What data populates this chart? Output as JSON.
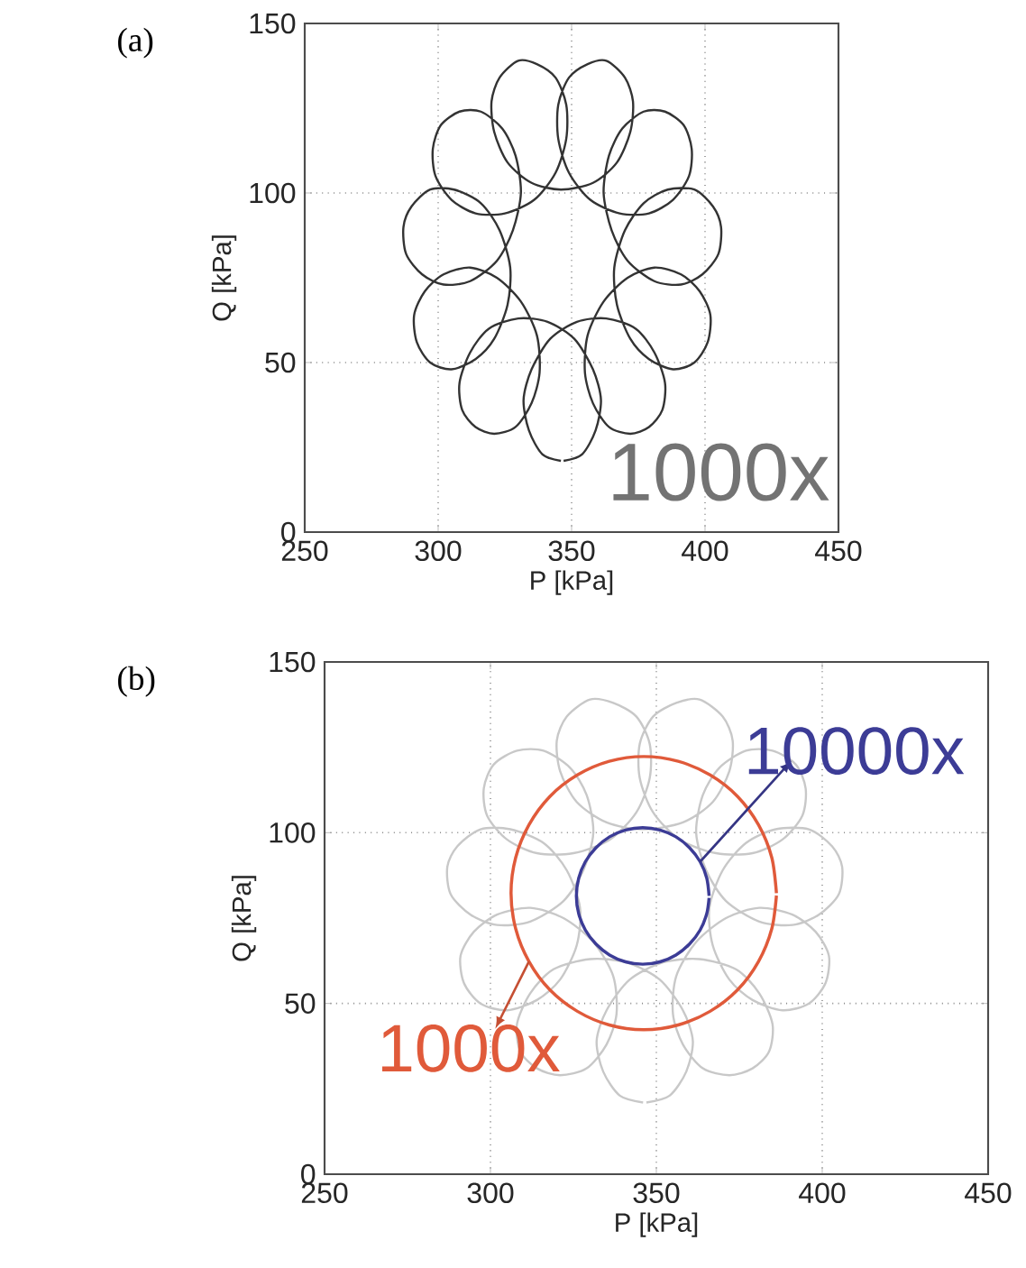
{
  "chart_data": [
    {
      "type": "line",
      "title": "(a)",
      "xlabel": "P [kPa]",
      "ylabel": "Q [kPa]",
      "xlim": [
        250,
        450
      ],
      "ylim": [
        0,
        150
      ],
      "xticks": [
        250,
        300,
        350,
        400,
        450
      ],
      "yticks": [
        0,
        50,
        100,
        150
      ],
      "grid": true,
      "annotations": [
        "1000x"
      ],
      "series": [
        {
          "color": "#333333",
          "x": [
            346,
            339,
            334,
            332,
            335,
            342,
            352,
            363,
            374,
            381,
            385,
            384,
            379,
            372,
            364,
            358,
            355,
            356,
            362,
            371,
            381,
            391,
            398,
            402,
            401,
            396,
            388,
            379,
            372,
            367,
            366,
            370,
            377,
            386,
            396,
            403,
            406,
            405,
            399,
            391,
            381,
            371,
            365,
            362,
            364,
            369,
            377,
            385,
            392,
            395,
            394,
            388,
            379,
            368,
            357,
            349,
            345,
            345,
            349,
            356,
            363,
            370,
            373,
            372,
            367,
            358,
            346,
            335,
            326,
            321,
            320,
            323,
            330,
            337,
            344,
            348,
            348,
            344,
            336,
            325,
            314,
            305,
            299,
            298,
            301,
            308,
            316,
            324,
            329,
            331,
            328,
            322,
            312,
            302,
            294,
            288,
            287,
            290,
            297,
            306,
            316,
            323,
            327,
            326,
            321,
            314,
            305,
            297,
            292,
            291,
            295,
            302,
            312,
            322,
            331,
            337,
            338,
            335,
            329,
            321,
            314,
            309,
            308,
            312,
            319,
            330,
            341,
            351,
            358,
            361,
            359,
            354,
            347
          ],
          "values": [
            21,
            23,
            30,
            39,
            48,
            57,
            62,
            63,
            60,
            53,
            44,
            36,
            31,
            29,
            31,
            38,
            47,
            58,
            68,
            75,
            78,
            76,
            71,
            64,
            56,
            50,
            48,
            51,
            57,
            67,
            78,
            89,
            97,
            101,
            101,
            96,
            90,
            82,
            76,
            73,
            74,
            80,
            89,
            100,
            111,
            119,
            124,
            124,
            120,
            113,
            105,
            98,
            94,
            94,
            98,
            106,
            116,
            126,
            134,
            138,
            139,
            134,
            127,
            118,
            109,
            103,
            101,
            103,
            109,
            118,
            127,
            134,
            139,
            138,
            134,
            126,
            116,
            106,
            98,
            94,
            94,
            98,
            105,
            113,
            120,
            124,
            124,
            119,
            111,
            100,
            89,
            80,
            74,
            73,
            76,
            82,
            90,
            96,
            101,
            101,
            97,
            89,
            78,
            67,
            57,
            51,
            48,
            50,
            56,
            64,
            71,
            76,
            78,
            75,
            68,
            58,
            47,
            38,
            31,
            29,
            31,
            36,
            44,
            53,
            60,
            63,
            62,
            57,
            48,
            39,
            30,
            23,
            21
          ]
        }
      ]
    },
    {
      "type": "line",
      "title": "(b)",
      "xlabel": "P [kPa]",
      "ylabel": "Q [kPa]",
      "xlim": [
        250,
        450
      ],
      "ylim": [
        0,
        150
      ],
      "xticks": [
        250,
        300,
        350,
        400,
        450
      ],
      "yticks": [
        0,
        50,
        100,
        150
      ],
      "grid": true,
      "annotations": [
        {
          "text": "10000x",
          "x": 363.2,
          "y": 91.5
        },
        {
          "text": "1000x",
          "x": 311.6,
          "y": 62.3
        }
      ],
      "series": [
        {
          "color": "#c8c8c8",
          "x": [
            346,
            339,
            334,
            332,
            335,
            342,
            352,
            363,
            374,
            381,
            385,
            384,
            379,
            372,
            364,
            358,
            355,
            356,
            362,
            371,
            381,
            391,
            398,
            402,
            401,
            396,
            388,
            379,
            372,
            367,
            366,
            370,
            377,
            386,
            396,
            403,
            406,
            405,
            399,
            391,
            381,
            371,
            365,
            362,
            364,
            369,
            377,
            385,
            392,
            395,
            394,
            388,
            379,
            368,
            357,
            349,
            345,
            345,
            349,
            356,
            363,
            370,
            373,
            372,
            367,
            358,
            346,
            335,
            326,
            321,
            320,
            323,
            330,
            337,
            344,
            348,
            348,
            344,
            336,
            325,
            314,
            305,
            299,
            298,
            301,
            308,
            316,
            324,
            329,
            331,
            328,
            322,
            312,
            302,
            294,
            288,
            287,
            290,
            297,
            306,
            316,
            323,
            327,
            326,
            321,
            314,
            305,
            297,
            292,
            291,
            295,
            302,
            312,
            322,
            331,
            337,
            338,
            335,
            329,
            321,
            314,
            309,
            308,
            312,
            319,
            330,
            341,
            351,
            358,
            361,
            359,
            354,
            347
          ],
          "values": [
            21,
            23,
            30,
            39,
            48,
            57,
            62,
            63,
            60,
            53,
            44,
            36,
            31,
            29,
            31,
            38,
            47,
            58,
            68,
            75,
            78,
            76,
            71,
            64,
            56,
            50,
            48,
            51,
            57,
            67,
            78,
            89,
            97,
            101,
            101,
            96,
            90,
            82,
            76,
            73,
            74,
            80,
            89,
            100,
            111,
            119,
            124,
            124,
            120,
            113,
            105,
            98,
            94,
            94,
            98,
            106,
            116,
            126,
            134,
            138,
            139,
            134,
            127,
            118,
            109,
            103,
            101,
            103,
            109,
            118,
            127,
            134,
            139,
            138,
            134,
            126,
            116,
            106,
            98,
            94,
            94,
            98,
            105,
            113,
            120,
            124,
            124,
            119,
            111,
            100,
            89,
            80,
            74,
            73,
            76,
            82,
            90,
            96,
            101,
            101,
            97,
            89,
            78,
            67,
            57,
            51,
            48,
            50,
            56,
            64,
            71,
            76,
            78,
            75,
            68,
            58,
            47,
            38,
            31,
            29,
            31,
            36,
            44,
            53,
            60,
            63,
            62,
            57,
            48,
            39,
            30,
            23,
            21
          ]
        },
        {
          "color": "#e05a3a",
          "x": [
            386.2,
            384.8,
            380.8,
            374.5,
            366.2,
            356.6,
            346.2,
            335.8,
            326.2,
            317.9,
            311.6,
            307.6,
            306.2,
            307.6,
            311.6,
            317.9,
            326.2,
            335.8,
            346.2,
            356.6,
            366.2,
            374.5,
            380.8,
            384.8,
            386.2
          ],
          "values": [
            82.3,
            92.7,
            102.3,
            110.6,
            116.9,
            120.9,
            122.3,
            120.9,
            116.9,
            110.6,
            102.3,
            92.7,
            82.3,
            71.9,
            62.3,
            54.0,
            47.7,
            43.7,
            42.3,
            43.7,
            47.7,
            54.0,
            62.3,
            71.9,
            81.6
          ]
        },
        {
          "color": "#3c3c96",
          "x": [
            365.9,
            365.2,
            363.2,
            360.0,
            355.9,
            351.1,
            345.9,
            340.7,
            335.9,
            331.8,
            328.6,
            326.6,
            325.9,
            326.6,
            328.6,
            331.8,
            335.9,
            340.7,
            345.9,
            351.1,
            355.9,
            360.0,
            363.2,
            365.2,
            365.9
          ],
          "values": [
            81.5,
            86.7,
            91.5,
            95.6,
            98.8,
            100.8,
            101.5,
            100.8,
            98.8,
            95.6,
            91.5,
            86.7,
            81.5,
            76.3,
            71.5,
            67.4,
            64.2,
            62.2,
            61.5,
            62.2,
            64.2,
            67.4,
            71.5,
            76.3,
            80.9
          ]
        }
      ]
    }
  ]
}
